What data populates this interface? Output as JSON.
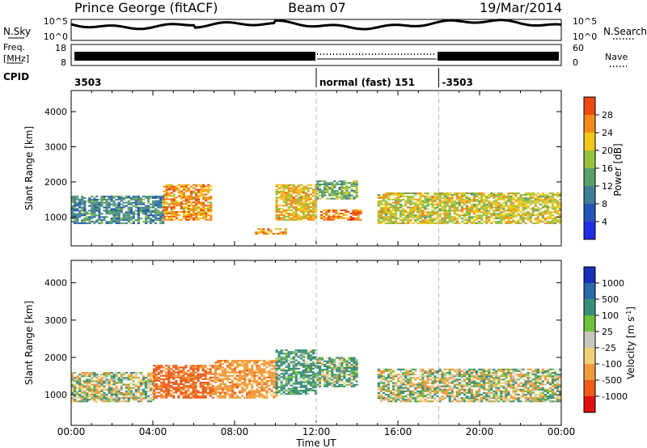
{
  "header": {
    "station": "Prince George (fitACF)",
    "beam": "Beam 07",
    "date": "19/Mar/2014"
  },
  "summary": {
    "nsky_label": "N.Sky",
    "nsearch_label": "N.Search",
    "nsky_ticks": [
      "10^5",
      "10^0"
    ],
    "nsearch_ticks": [
      "10^5",
      "10^0"
    ],
    "freq_label_line1": "Freq.",
    "freq_label_line2": "[MHz]",
    "freq_ticks": [
      "18",
      "8"
    ],
    "nave_label": "Nave",
    "nave_ticks": [
      "60",
      "0"
    ],
    "cpid_label": "CPID",
    "cpid_segments": [
      {
        "start_hour": 0,
        "end_hour": 12,
        "label": "3503"
      },
      {
        "start_hour": 12,
        "end_hour": 18,
        "label": "normal (fast) 151"
      },
      {
        "start_hour": 18,
        "end_hour": 24,
        "label": "-3503"
      }
    ]
  },
  "colors": {
    "power": [
      "#1f2ee6",
      "#2456b8",
      "#3d7f96",
      "#5aa06a",
      "#99c23c",
      "#f2c61a",
      "#f28a1a",
      "#ee4a14",
      "#e01010"
    ],
    "velocity": [
      "#1530b8",
      "#2a6aa8",
      "#3a8f7a",
      "#6cc23a",
      "#c8c8c0",
      "#f2d07a",
      "#f29a3a",
      "#ee5a1a",
      "#e01010"
    ]
  },
  "chart_data": [
    {
      "type": "heatmap",
      "panel": "power",
      "ylabel": "Slant Range [km]",
      "xlabel": "Time UT",
      "x_ticks": [
        "00:00",
        "04:00",
        "08:00",
        "12:00",
        "16:00",
        "20:00",
        "00:00"
      ],
      "y_ticks": [
        1000,
        2000,
        3000,
        4000
      ],
      "xlim_hours": [
        0,
        24
      ],
      "ylim_km": [
        180,
        4600
      ],
      "colorbar_label": "Power [dB]",
      "colorbar_ticks": [
        4,
        8,
        12,
        16,
        20,
        24,
        28
      ],
      "echo_regions": [
        {
          "start_hour": 0.0,
          "end_hour": 4.5,
          "range_km": [
            800,
            1600
          ],
          "power_db": 10
        },
        {
          "start_hour": 4.5,
          "end_hour": 6.8,
          "range_km": [
            900,
            1900
          ],
          "power_db": 22
        },
        {
          "start_hour": 9.0,
          "end_hour": 10.5,
          "range_km": [
            500,
            650
          ],
          "power_db": 22
        },
        {
          "start_hour": 10.0,
          "end_hour": 12.0,
          "range_km": [
            900,
            1900
          ],
          "power_db": 20
        },
        {
          "start_hour": 12.0,
          "end_hour": 14.0,
          "range_km": [
            1500,
            2000
          ],
          "power_db": 14
        },
        {
          "start_hour": 12.2,
          "end_hour": 14.2,
          "range_km": [
            900,
            1200
          ],
          "power_db": 24
        },
        {
          "start_hour": 15.0,
          "end_hour": 24.0,
          "range_km": [
            800,
            1700
          ],
          "power_db": 18
        }
      ]
    },
    {
      "type": "heatmap",
      "panel": "velocity",
      "ylabel": "Slant Range [km]",
      "xlabel": "Time UT",
      "x_ticks": [
        "00:00",
        "04:00",
        "08:00",
        "12:00",
        "16:00",
        "20:00",
        "00:00"
      ],
      "y_ticks": [
        1000,
        2000,
        3000,
        4000
      ],
      "xlim_hours": [
        0,
        24
      ],
      "ylim_km": [
        180,
        4600
      ],
      "colorbar_label": "Velocity [m s^-1]",
      "colorbar_ticks": [
        1000,
        500,
        100,
        25,
        -25,
        -100,
        -500,
        -1000
      ],
      "echo_regions": [
        {
          "start_hour": 0.0,
          "end_hour": 4.0,
          "range_km": [
            800,
            1600
          ],
          "velocity_ms": 0
        },
        {
          "start_hour": 4.0,
          "end_hour": 7.0,
          "range_km": [
            900,
            1800
          ],
          "velocity_ms": -600
        },
        {
          "start_hour": 7.0,
          "end_hour": 10.0,
          "range_km": [
            900,
            1900
          ],
          "velocity_ms": -300
        },
        {
          "start_hour": 10.0,
          "end_hour": 12.0,
          "range_km": [
            1000,
            2200
          ],
          "velocity_ms": 200
        },
        {
          "start_hour": 12.0,
          "end_hour": 14.0,
          "range_km": [
            1200,
            2000
          ],
          "velocity_ms": 100
        },
        {
          "start_hour": 15.0,
          "end_hour": 24.0,
          "range_km": [
            800,
            1700
          ],
          "velocity_ms": 0
        }
      ]
    }
  ]
}
